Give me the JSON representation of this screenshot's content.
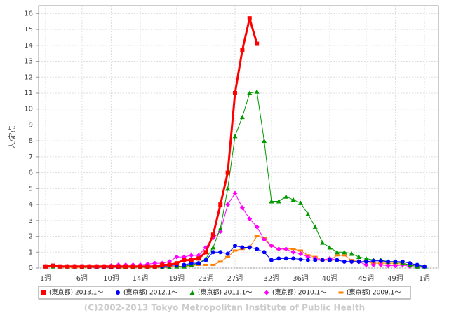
{
  "chart_data": {
    "type": "line",
    "y_label": "人/定点",
    "categories": [
      "1週",
      null,
      null,
      null,
      null,
      "6週",
      null,
      null,
      null,
      "10週",
      null,
      null,
      null,
      "14週",
      null,
      null,
      null,
      null,
      "19週",
      null,
      null,
      null,
      "23週",
      null,
      null,
      null,
      "27週",
      null,
      null,
      null,
      null,
      "32週",
      null,
      null,
      null,
      "36週",
      null,
      null,
      null,
      "40週",
      null,
      null,
      null,
      null,
      "45週",
      null,
      null,
      null,
      "49週",
      null,
      null,
      null,
      "1週"
    ],
    "ylim": [
      0,
      16.5
    ],
    "yticks": [
      0,
      1,
      2,
      3,
      4,
      5,
      6,
      7,
      8,
      9,
      10,
      11,
      12,
      13,
      14,
      15,
      16
    ],
    "grid": true,
    "series": [
      {
        "name": "(東京都) 2013.1～",
        "color": "#ff0000",
        "marker": "square",
        "values": [
          0.1,
          0.15,
          0.1,
          0.1,
          0.1,
          0.1,
          0.1,
          0.1,
          0.1,
          0.1,
          0.1,
          0.1,
          0.1,
          0.1,
          0.1,
          0.1,
          0.2,
          0.2,
          0.3,
          0.5,
          0.5,
          0.6,
          1.0,
          2.1,
          4.0,
          6.0,
          11.0,
          13.7,
          15.7,
          14.1,
          null,
          null,
          null,
          null,
          null,
          null,
          null,
          null,
          null,
          null,
          null,
          null,
          null,
          null,
          null,
          null,
          null,
          null,
          null,
          null,
          null,
          null,
          null
        ]
      },
      {
        "name": "(東京都) 2012.1～",
        "color": "#0000ff",
        "marker": "circle",
        "values": [
          0.1,
          0.15,
          0.1,
          0.1,
          0.1,
          0.1,
          0.05,
          0.05,
          0.05,
          0.05,
          0.05,
          0.1,
          0.1,
          0.1,
          0.1,
          0.1,
          0.1,
          0.15,
          0.2,
          0.2,
          0.3,
          0.3,
          0.5,
          1.0,
          1.0,
          0.9,
          1.4,
          1.3,
          1.3,
          1.2,
          1.0,
          0.5,
          0.6,
          0.6,
          0.6,
          0.55,
          0.5,
          0.5,
          0.5,
          0.5,
          0.5,
          0.4,
          0.4,
          0.4,
          0.4,
          0.45,
          0.45,
          0.4,
          0.4,
          0.4,
          0.3,
          0.2,
          0.1
        ]
      },
      {
        "name": "(東京都) 2011.1～",
        "color": "#009900",
        "marker": "triangle",
        "values": [
          0.1,
          0.1,
          0.1,
          0.1,
          0.1,
          0.05,
          0.05,
          0.05,
          0.05,
          0.05,
          0.05,
          0.05,
          0.05,
          0.05,
          0.05,
          0.05,
          0.05,
          0.05,
          0.1,
          0.1,
          0.2,
          0.3,
          0.6,
          1.3,
          2.5,
          5.0,
          8.3,
          9.5,
          11.0,
          11.1,
          8.0,
          4.2,
          4.2,
          4.5,
          4.3,
          4.1,
          3.4,
          2.6,
          1.6,
          1.3,
          1.0,
          1.0,
          0.9,
          0.7,
          0.6,
          0.5,
          0.5,
          0.4,
          0.4,
          0.3,
          0.2,
          0.1,
          0.1
        ]
      },
      {
        "name": "(東京都) 2010.1～",
        "color": "#ff00ff",
        "marker": "diamond",
        "values": [
          0.1,
          0.1,
          0.1,
          0.1,
          0.1,
          0.1,
          0.1,
          0.1,
          0.1,
          0.15,
          0.2,
          0.2,
          0.2,
          0.2,
          0.25,
          0.3,
          0.3,
          0.4,
          0.7,
          0.7,
          0.8,
          0.8,
          1.3,
          1.9,
          2.3,
          4.0,
          4.7,
          3.8,
          3.1,
          2.6,
          1.8,
          1.4,
          1.2,
          1.2,
          1.0,
          0.9,
          0.7,
          0.6,
          0.5,
          0.6,
          0.5,
          0.4,
          0.4,
          0.4,
          0.2,
          0.2,
          0.2,
          0.15,
          0.15,
          0.2,
          0.1,
          0.05,
          0.05
        ]
      },
      {
        "name": "(東京都) 2009.1～",
        "color": "#ff7f00",
        "marker": "dash",
        "values": [
          0.1,
          0.1,
          0.05,
          0.05,
          0.05,
          0.05,
          0.05,
          0.05,
          0.05,
          0.05,
          0.05,
          0.05,
          0.05,
          0.05,
          0.05,
          0.05,
          0.05,
          0.1,
          0.1,
          0.1,
          0.15,
          0.2,
          0.2,
          0.2,
          0.4,
          0.7,
          1.1,
          1.2,
          1.3,
          2.0,
          1.9,
          1.4,
          1.2,
          1.2,
          1.2,
          1.1,
          0.8,
          0.7,
          0.5,
          0.5,
          0.8,
          0.8,
          0.5,
          0.4,
          0.4,
          0.3,
          0.3,
          0.3,
          0.3,
          0.25,
          0.2,
          0.1,
          0.05
        ]
      }
    ],
    "footer": "(C)2002-2013 Tokyo Metropolitan Institute of Public Health"
  }
}
